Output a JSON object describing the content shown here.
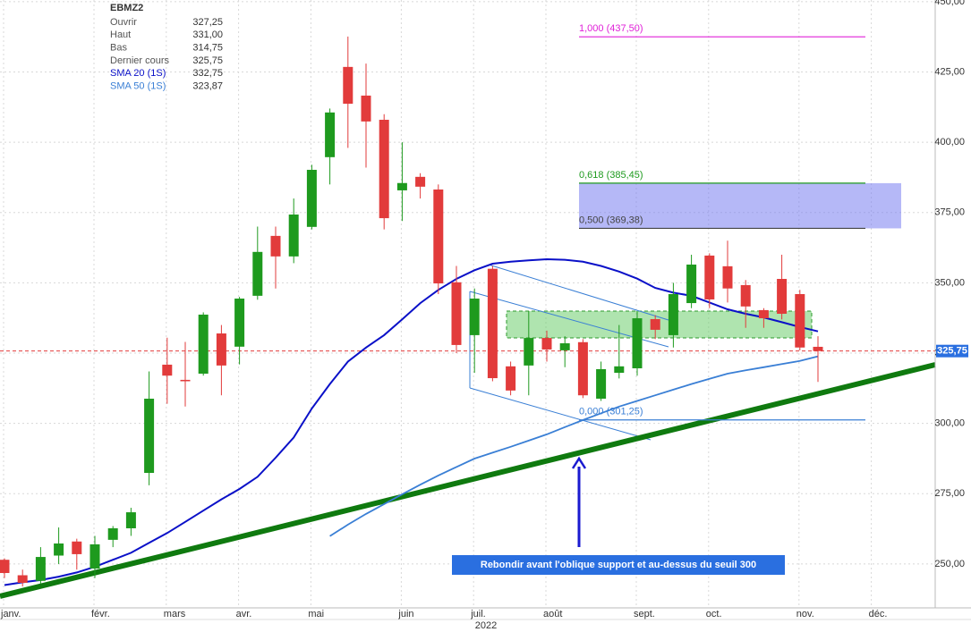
{
  "chart_data": {
    "type": "candlestick",
    "title": "EBMZ2",
    "categories": [
      "janv.",
      null,
      null,
      null,
      null,
      "févr.",
      null,
      null,
      null,
      "mars",
      null,
      null,
      null,
      "avr.",
      null,
      null,
      null,
      "mai",
      null,
      null,
      null,
      null,
      "juin",
      null,
      null,
      null,
      "juil.",
      null,
      null,
      null,
      "août",
      null,
      null,
      null,
      null,
      "sept.",
      null,
      null,
      null,
      "oct.",
      null,
      null,
      null,
      null,
      "nov.",
      null,
      null,
      null,
      "déc.",
      null,
      null,
      null
    ],
    "year_label": "2022",
    "ohlc": {
      "open": [
        251.5,
        246,
        244,
        253,
        258,
        248.4,
        258.6,
        262.7,
        282.4,
        320.9,
        315.5,
        317.7,
        332,
        327.3,
        345.4,
        366.7,
        359.4,
        369.9,
        394.7,
        426.8,
        416.6,
        408,
        382.9,
        387.7,
        383.2,
        350.2,
        331.4,
        355,
        320.3,
        320.6,
        330.4,
        326,
        328.9,
        308.8,
        318,
        319.6,
        337.1,
        331.4,
        342.8,
        359.7,
        355.9,
        349.2,
        340.3,
        351.4,
        346,
        327.25,
        null,
        null,
        null,
        null,
        null,
        null
      ],
      "high": [
        252,
        248,
        256,
        263,
        259,
        260,
        263.5,
        270,
        318.5,
        330.5,
        329,
        339.5,
        335,
        345,
        370,
        370,
        380,
        392,
        412,
        437.6,
        428,
        410,
        400,
        389,
        385,
        356,
        348,
        356,
        322,
        340,
        333,
        331,
        330,
        322,
        335,
        340,
        338.5,
        350,
        360,
        360.5,
        365,
        351,
        341,
        360,
        347.5,
        331,
        null,
        null,
        null,
        null,
        null,
        null
      ],
      "low": [
        245,
        242,
        243,
        250,
        248,
        245,
        256,
        260,
        278,
        307,
        306,
        317,
        310,
        321,
        344,
        348,
        357,
        369,
        385,
        398,
        391,
        369,
        372,
        380,
        346,
        325,
        318,
        315,
        310,
        310,
        322,
        320,
        309,
        308,
        316,
        317,
        330,
        327,
        341,
        341,
        343,
        334,
        334,
        337,
        326,
        314.75,
        null,
        null,
        null,
        null,
        null,
        null
      ],
      "close": [
        246.8,
        243.3,
        252.5,
        257.3,
        253.5,
        257,
        262.7,
        268.4,
        308.8,
        317,
        315,
        338.7,
        320.6,
        344.4,
        361,
        359.4,
        374.3,
        390.2,
        410.6,
        413.7,
        407.4,
        373,
        385.5,
        384.2,
        349.8,
        327.9,
        344.4,
        316.1,
        311.7,
        330.4,
        326.3,
        328.5,
        310,
        319.3,
        320.3,
        337.4,
        333.3,
        346,
        356.5,
        344.1,
        348,
        341.6,
        337.4,
        339,
        327,
        325.75,
        null,
        null,
        null,
        null,
        null,
        null
      ]
    },
    "up_color": "#1e9a1e",
    "down_color": "#e23b3b",
    "ohlc_legend": [
      {
        "name": "Ouvrir",
        "value": "327,25"
      },
      {
        "name": "Haut",
        "value": "331,00"
      },
      {
        "name": "Bas",
        "value": "314,75"
      },
      {
        "name": "Dernier cours",
        "value": "325,75"
      }
    ],
    "series": [
      {
        "name": "SMA 20 (1S)",
        "color": "#0a10c8",
        "last_label": "332,75",
        "values": [
          242.5,
          243.5,
          244.3,
          245.5,
          247,
          249,
          251.5,
          254,
          257.5,
          261,
          265,
          269,
          273,
          276.7,
          281,
          287.8,
          295,
          305.3,
          314,
          322,
          327,
          331.4,
          337,
          342.8,
          347.5,
          351.4,
          354.5,
          356.8,
          357.5,
          358,
          358.4,
          358.2,
          357.5,
          356,
          354,
          351.5,
          348.2,
          346.5,
          345.4,
          343,
          340.6,
          339,
          337.7,
          336,
          334.3,
          332.75,
          null,
          null,
          null,
          null,
          null,
          null
        ]
      },
      {
        "name": "SMA 50 (1S)",
        "color": "#3a7fd5",
        "last_label": "323,87",
        "values": [
          null,
          null,
          null,
          null,
          null,
          null,
          null,
          null,
          null,
          null,
          null,
          null,
          null,
          null,
          null,
          null,
          null,
          null,
          259.9,
          264,
          267.8,
          271.3,
          274.8,
          278.2,
          281.5,
          284.5,
          287.5,
          289.6,
          291.7,
          293.9,
          296.1,
          298.7,
          301.2,
          303.6,
          306,
          308,
          310,
          312,
          314,
          315.9,
          317.7,
          318.9,
          320,
          321.1,
          322.2,
          323.87,
          null,
          null,
          null,
          null,
          null,
          null
        ]
      }
    ],
    "last_price": {
      "value": 325.75,
      "label": "325,75"
    },
    "fib_levels": [
      {
        "label": "1,000 (437,50)",
        "value": 437.5,
        "color": "#e020d8"
      },
      {
        "label": "0,618 (385,45)",
        "value": 385.45,
        "color": "#1e9a1e"
      },
      {
        "label": "0,500 (369,38)",
        "value": 369.38,
        "color": "#444444"
      },
      {
        "label": "0,000 (301,25)",
        "value": 301.25,
        "color": "#3a7fd5"
      }
    ],
    "annotation": "Rebondir avant l'oblique support et au-dessus du seuil 300",
    "ylim": [
      234.4,
      450.6
    ],
    "yticks": [
      {
        "value": 250,
        "label": "250,00"
      },
      {
        "value": 275,
        "label": "275,00"
      },
      {
        "value": 300,
        "label": "300,00"
      },
      {
        "value": 325,
        "label": "325,00"
      },
      {
        "value": 350,
        "label": "350,00"
      },
      {
        "value": 375,
        "label": "375,00"
      },
      {
        "value": 400,
        "label": "400,00"
      },
      {
        "value": 425,
        "label": "425,00"
      },
      {
        "value": 450,
        "label": "450,00"
      }
    ],
    "grid": true
  }
}
